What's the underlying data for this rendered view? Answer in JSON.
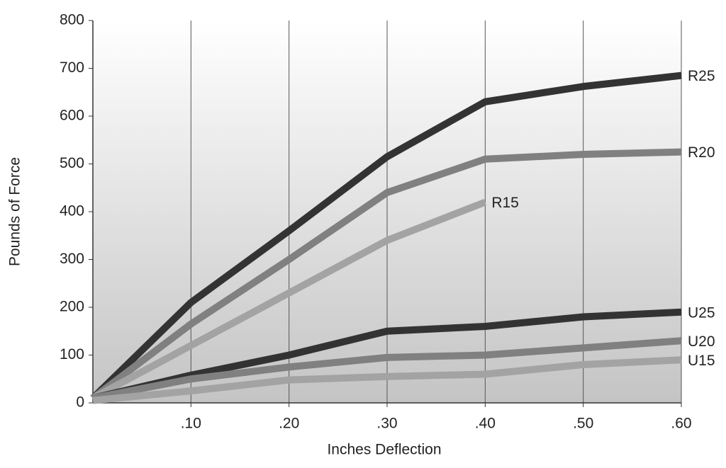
{
  "chart_data": {
    "type": "line",
    "x_label": "Inches Deflection",
    "y_label": "Pounds of Force",
    "x": [
      0,
      0.1,
      0.2,
      0.3,
      0.4,
      0.5,
      0.6
    ],
    "series": [
      {
        "name": "R25",
        "color": "#333333",
        "values": [
          10,
          210,
          360,
          515,
          630,
          662,
          685
        ]
      },
      {
        "name": "R20",
        "color": "#808080",
        "values": [
          10,
          165,
          300,
          440,
          510,
          520,
          525
        ]
      },
      {
        "name": "R15",
        "color": "#a3a3a3",
        "values": [
          10,
          120,
          230,
          340,
          420,
          null,
          null
        ]
      },
      {
        "name": "U25",
        "color": "#333333",
        "values": [
          10,
          58,
          100,
          150,
          160,
          180,
          190
        ]
      },
      {
        "name": "U20",
        "color": "#808080",
        "values": [
          10,
          50,
          75,
          95,
          100,
          115,
          130
        ]
      },
      {
        "name": "U15",
        "color": "#a3a3a3",
        "values": [
          5,
          25,
          48,
          55,
          60,
          80,
          90
        ]
      }
    ],
    "xlim": [
      0,
      0.6
    ],
    "xticks": [
      {
        "value": 0.1,
        "label": ".10"
      },
      {
        "value": 0.2,
        "label": ".20"
      },
      {
        "value": 0.3,
        "label": ".30"
      },
      {
        "value": 0.4,
        "label": ".40"
      },
      {
        "value": 0.5,
        "label": ".50"
      },
      {
        "value": 0.6,
        "label": ".60"
      }
    ],
    "ylim": [
      0,
      800
    ],
    "yticks": [
      0,
      100,
      200,
      300,
      400,
      500,
      600,
      700,
      800
    ],
    "grid": "x"
  }
}
